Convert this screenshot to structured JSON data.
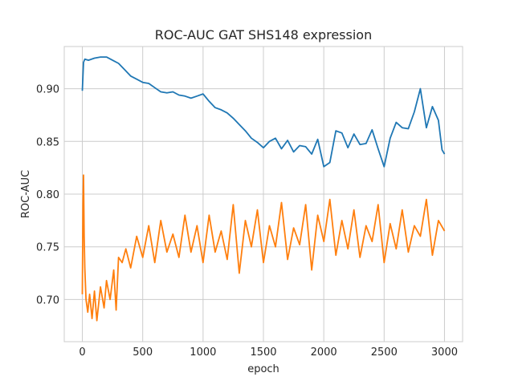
{
  "chart_data": {
    "type": "line",
    "title": "ROC-AUC GAT SHS148 expression",
    "xlabel": "epoch",
    "ylabel": "ROC-AUC",
    "xlim": [
      -150,
      3150
    ],
    "ylim": [
      0.66,
      0.94
    ],
    "xticks": [
      0,
      500,
      1000,
      1500,
      2000,
      2500,
      3000
    ],
    "yticks": [
      0.7,
      0.75,
      0.8,
      0.85,
      0.9
    ],
    "xtick_labels": [
      "0",
      "500",
      "1000",
      "1500",
      "2000",
      "2500",
      "3000"
    ],
    "ytick_labels": [
      "0.70",
      "0.75",
      "0.80",
      "0.85",
      "0.90"
    ],
    "grid": true,
    "legend": "none",
    "series": [
      {
        "color": "#1f77b4",
        "x": [
          0,
          10,
          20,
          50,
          100,
          150,
          200,
          250,
          300,
          350,
          400,
          450,
          500,
          550,
          600,
          650,
          700,
          750,
          800,
          850,
          900,
          950,
          1000,
          1050,
          1100,
          1150,
          1200,
          1250,
          1300,
          1350,
          1400,
          1450,
          1500,
          1550,
          1600,
          1650,
          1700,
          1750,
          1800,
          1850,
          1900,
          1950,
          2000,
          2050,
          2100,
          2150,
          2200,
          2250,
          2300,
          2350,
          2400,
          2450,
          2500,
          2550,
          2600,
          2650,
          2700,
          2750,
          2800,
          2850,
          2900,
          2950,
          2980,
          3000
        ],
        "y": [
          0.898,
          0.925,
          0.928,
          0.927,
          0.929,
          0.93,
          0.93,
          0.927,
          0.924,
          0.918,
          0.912,
          0.909,
          0.906,
          0.905,
          0.901,
          0.897,
          0.896,
          0.897,
          0.894,
          0.893,
          0.891,
          0.893,
          0.895,
          0.888,
          0.882,
          0.88,
          0.877,
          0.872,
          0.866,
          0.86,
          0.853,
          0.849,
          0.844,
          0.85,
          0.853,
          0.843,
          0.851,
          0.84,
          0.846,
          0.845,
          0.838,
          0.852,
          0.826,
          0.83,
          0.86,
          0.858,
          0.844,
          0.857,
          0.847,
          0.848,
          0.861,
          0.843,
          0.826,
          0.853,
          0.868,
          0.863,
          0.862,
          0.878,
          0.9,
          0.863,
          0.883,
          0.87,
          0.842,
          0.838
        ]
      },
      {
        "color": "#ff7f0e",
        "x": [
          0,
          5,
          10,
          15,
          20,
          30,
          45,
          60,
          80,
          100,
          120,
          150,
          180,
          200,
          230,
          260,
          280,
          300,
          330,
          360,
          400,
          450,
          500,
          550,
          600,
          650,
          700,
          750,
          800,
          850,
          900,
          950,
          1000,
          1050,
          1100,
          1150,
          1200,
          1250,
          1300,
          1350,
          1400,
          1450,
          1500,
          1550,
          1600,
          1650,
          1700,
          1750,
          1800,
          1850,
          1900,
          1950,
          2000,
          2050,
          2100,
          2150,
          2200,
          2250,
          2300,
          2350,
          2400,
          2450,
          2500,
          2550,
          2600,
          2650,
          2700,
          2750,
          2800,
          2850,
          2900,
          2950,
          3000
        ],
        "y": [
          0.705,
          0.79,
          0.818,
          0.76,
          0.73,
          0.7,
          0.688,
          0.705,
          0.682,
          0.708,
          0.68,
          0.712,
          0.692,
          0.718,
          0.7,
          0.728,
          0.69,
          0.74,
          0.735,
          0.748,
          0.73,
          0.76,
          0.74,
          0.77,
          0.735,
          0.775,
          0.745,
          0.762,
          0.74,
          0.78,
          0.745,
          0.77,
          0.735,
          0.78,
          0.745,
          0.765,
          0.738,
          0.79,
          0.725,
          0.775,
          0.75,
          0.785,
          0.735,
          0.77,
          0.75,
          0.792,
          0.738,
          0.768,
          0.752,
          0.79,
          0.728,
          0.78,
          0.755,
          0.795,
          0.742,
          0.775,
          0.748,
          0.785,
          0.74,
          0.77,
          0.755,
          0.79,
          0.735,
          0.772,
          0.748,
          0.785,
          0.745,
          0.77,
          0.76,
          0.795,
          0.742,
          0.775,
          0.765
        ]
      }
    ]
  }
}
